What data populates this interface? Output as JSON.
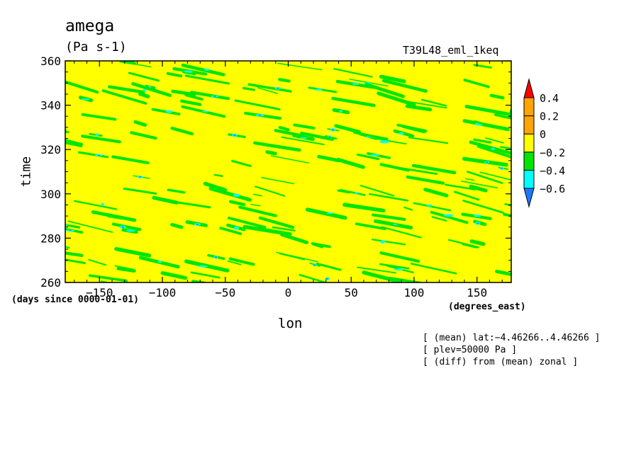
{
  "chart_data": {
    "type": "heatmap",
    "title": "amega",
    "units": "(Pa s-1)",
    "experiment": "T39L48_eml_1keq",
    "xlabel": "lon",
    "ylabel": "time",
    "x_unit_label": "(degrees_east)",
    "y_unit_label": "(days since 0000-01-01)",
    "xlim": [
      -177.2,
      177.2
    ],
    "ylim": [
      260,
      360
    ],
    "x_ticks": [
      -150,
      -100,
      -50,
      0,
      50,
      100,
      150
    ],
    "x_tick_labels": [
      "−150",
      "−100",
      "−50",
      "0",
      "50",
      "100",
      "150"
    ],
    "y_ticks": [
      260,
      280,
      300,
      320,
      340,
      360
    ],
    "y_tick_labels": [
      "260",
      "280",
      "300",
      "320",
      "340",
      "360"
    ],
    "colorbar": {
      "levels": [
        -0.6,
        -0.4,
        -0.2,
        0,
        0.2,
        0.4
      ],
      "level_labels": [
        "−0.6",
        "−0.4",
        "−0.2",
        "0",
        "0.2",
        "0.4"
      ],
      "colors": [
        "#1e78ff",
        "#00ffff",
        "#00e600",
        "#ffff00",
        "#ffa500",
        "#ff0000"
      ]
    },
    "notes": [
      "[ (mean) lat:−4.46266..4.46266 ]",
      "[ plev=50000 Pa ]",
      "[ (diff) from (mean) zonal ]"
    ],
    "pattern": {
      "background_level_color": "#ffff00",
      "streak_colors": [
        "#00e600",
        "#00ffff",
        "#1e78ff"
      ],
      "streak_slope_deg_per_day": -8
    }
  }
}
